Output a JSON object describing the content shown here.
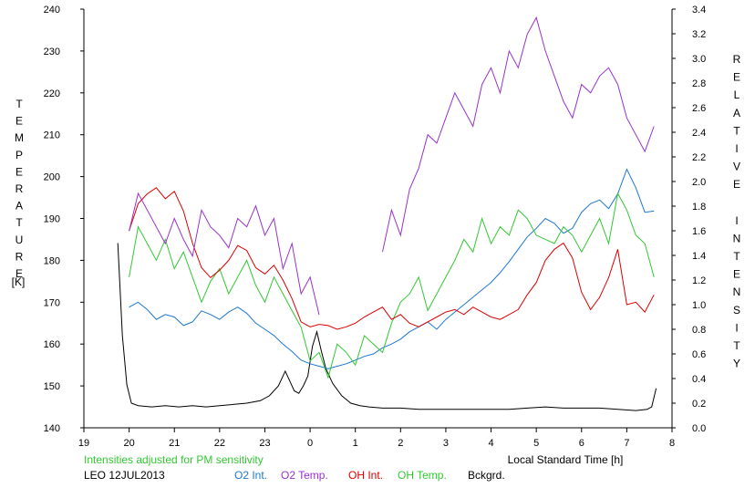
{
  "chart_data": {
    "type": "line",
    "left_axis": {
      "label": "TEMPERATURE",
      "unit": "[K]",
      "ylim": [
        140,
        240
      ],
      "ticks": [
        "140",
        "150",
        "160",
        "170",
        "180",
        "190",
        "200",
        "210",
        "220",
        "230",
        "240"
      ]
    },
    "right_axis": {
      "label": "RELATIVE INTENSITY",
      "ylim": [
        0.0,
        3.4
      ],
      "ticks": [
        "0.0",
        "0.2",
        "0.4",
        "0.6",
        "0.8",
        "1.0",
        "1.2",
        "1.4",
        "1.6",
        "1.8",
        "2.0",
        "2.2",
        "2.4",
        "2.6",
        "2.8",
        "3.0",
        "3.2",
        "3.4"
      ]
    },
    "x_axis": {
      "label": "Local Standard Time [h]",
      "xlim": [
        19,
        32
      ],
      "ticks": [
        "19",
        "20",
        "21",
        "22",
        "23",
        "0",
        "1",
        "2",
        "3",
        "4",
        "5",
        "6",
        "7",
        "8"
      ]
    },
    "note": "Intensities adjusted for PM sensitivity",
    "station": "LEO 12JUL2013",
    "grid": false,
    "series": [
      {
        "name": "O2 Int.",
        "axis": "right",
        "color": "#1e78d2",
        "x": [
          20.0,
          20.2,
          20.4,
          20.6,
          20.8,
          21.0,
          21.2,
          21.4,
          21.6,
          21.8,
          22.0,
          22.2,
          22.4,
          22.6,
          22.8,
          23.0,
          23.2,
          23.4,
          23.6,
          23.8,
          24.0,
          24.2,
          24.4,
          24.6,
          24.8,
          25.0,
          25.2,
          25.4,
          25.6,
          25.8,
          26.0,
          26.2,
          26.4,
          26.6,
          26.8,
          27.0,
          27.2,
          27.4,
          27.6,
          27.8,
          28.0,
          28.2,
          28.4,
          28.6,
          28.8,
          29.0,
          29.2,
          29.4,
          29.6,
          29.8,
          30.0,
          30.2,
          30.4,
          30.6,
          30.8,
          31.0,
          31.2,
          31.4,
          31.6
        ],
        "values": [
          0.98,
          1.02,
          0.96,
          0.88,
          0.92,
          0.9,
          0.83,
          0.86,
          0.95,
          0.92,
          0.88,
          0.94,
          0.98,
          0.93,
          0.85,
          0.8,
          0.75,
          0.68,
          0.62,
          0.55,
          0.52,
          0.5,
          0.48,
          0.5,
          0.52,
          0.55,
          0.58,
          0.6,
          0.65,
          0.68,
          0.72,
          0.78,
          0.82,
          0.86,
          0.8,
          0.88,
          0.94,
          1.0,
          1.06,
          1.12,
          1.18,
          1.26,
          1.35,
          1.45,
          1.55,
          1.62,
          1.7,
          1.66,
          1.58,
          1.62,
          1.75,
          1.82,
          1.85,
          1.78,
          1.9,
          2.1,
          1.95,
          1.75,
          1.76
        ]
      },
      {
        "name": "O2 Temp.",
        "axis": "left",
        "color": "#9932cc",
        "x": [
          20.0,
          20.2,
          20.4,
          20.6,
          20.8,
          21.0,
          21.2,
          21.4,
          21.6,
          21.8,
          22.0,
          22.2,
          22.4,
          22.6,
          22.8,
          23.0,
          23.2,
          23.4,
          23.6,
          23.8,
          24.0,
          24.2,
          25.6,
          25.8,
          26.0,
          26.2,
          26.4,
          26.6,
          26.8,
          27.0,
          27.2,
          27.4,
          27.6,
          27.8,
          28.0,
          28.2,
          28.4,
          28.6,
          28.8,
          29.0,
          29.2,
          29.4,
          29.6,
          29.8,
          30.0,
          30.2,
          30.4,
          30.6,
          30.8,
          31.0,
          31.2,
          31.4,
          31.6
        ],
        "values": [
          187,
          196,
          192,
          188,
          184,
          190,
          185,
          181,
          192,
          188,
          186,
          183,
          190,
          188,
          193,
          186,
          190,
          178,
          184,
          172,
          176,
          167,
          182,
          192,
          186,
          197,
          202,
          210,
          208,
          214,
          220,
          216,
          212,
          222,
          226,
          220,
          230,
          226,
          234,
          238,
          230,
          224,
          218,
          214,
          222,
          220,
          224,
          226,
          222,
          214,
          210,
          206,
          212
        ]
      },
      {
        "name": "OH Int.",
        "axis": "right",
        "color": "#dc0000",
        "x": [
          20.0,
          20.2,
          20.4,
          20.6,
          20.8,
          21.0,
          21.2,
          21.4,
          21.6,
          21.8,
          22.0,
          22.2,
          22.4,
          22.6,
          22.8,
          23.0,
          23.2,
          23.4,
          23.6,
          23.8,
          24.0,
          24.2,
          24.4,
          24.6,
          24.8,
          25.0,
          25.2,
          25.4,
          25.6,
          25.8,
          26.0,
          26.2,
          26.4,
          26.6,
          26.8,
          27.0,
          27.2,
          27.4,
          27.6,
          27.8,
          28.0,
          28.2,
          28.4,
          28.6,
          28.8,
          29.0,
          29.2,
          29.4,
          29.6,
          29.8,
          30.0,
          30.2,
          30.4,
          30.6,
          30.8,
          31.0,
          31.2,
          31.4,
          31.6
        ],
        "values": [
          1.6,
          1.82,
          1.9,
          1.95,
          1.86,
          1.92,
          1.76,
          1.5,
          1.3,
          1.22,
          1.28,
          1.36,
          1.48,
          1.44,
          1.3,
          1.25,
          1.32,
          1.2,
          1.05,
          0.86,
          0.82,
          0.84,
          0.83,
          0.8,
          0.82,
          0.85,
          0.9,
          0.94,
          0.98,
          0.88,
          0.92,
          0.85,
          0.82,
          0.86,
          0.9,
          0.94,
          0.96,
          0.92,
          0.98,
          0.94,
          0.9,
          0.88,
          0.92,
          0.96,
          1.08,
          1.18,
          1.36,
          1.45,
          1.5,
          1.38,
          1.1,
          0.96,
          1.06,
          1.22,
          1.45,
          1.0,
          1.02,
          0.94,
          1.08
        ]
      },
      {
        "name": "OH Temp.",
        "axis": "left",
        "color": "#32c832",
        "x": [
          20.0,
          20.2,
          20.4,
          20.6,
          20.8,
          21.0,
          21.2,
          21.4,
          21.6,
          21.8,
          22.0,
          22.2,
          22.4,
          22.6,
          22.8,
          23.0,
          23.2,
          23.4,
          23.6,
          23.8,
          24.0,
          24.2,
          24.4,
          24.6,
          24.8,
          25.0,
          25.2,
          25.4,
          25.6,
          25.8,
          26.0,
          26.2,
          26.4,
          26.6,
          26.8,
          27.0,
          27.2,
          27.4,
          27.6,
          27.8,
          28.0,
          28.2,
          28.4,
          28.6,
          28.8,
          29.0,
          29.2,
          29.4,
          29.6,
          29.8,
          30.0,
          30.2,
          30.4,
          30.6,
          30.8,
          31.0,
          31.2,
          31.4,
          31.6
        ],
        "values": [
          176,
          188,
          184,
          180,
          185,
          178,
          182,
          176,
          170,
          175,
          178,
          172,
          176,
          180,
          174,
          170,
          176,
          172,
          168,
          164,
          156,
          158,
          152,
          160,
          158,
          155,
          162,
          160,
          158,
          165,
          170,
          172,
          176,
          168,
          172,
          176,
          180,
          185,
          182,
          190,
          184,
          188,
          186,
          192,
          190,
          186,
          185,
          184,
          188,
          186,
          182,
          186,
          190,
          184,
          196,
          192,
          186,
          184,
          176
        ]
      },
      {
        "name": "Bckgrd.",
        "axis": "right",
        "color": "#000000",
        "x": [
          19.75,
          19.85,
          19.95,
          20.05,
          20.2,
          20.5,
          20.8,
          21.1,
          21.4,
          21.7,
          22.0,
          22.3,
          22.6,
          22.9,
          23.1,
          23.3,
          23.45,
          23.55,
          23.65,
          23.75,
          23.85,
          23.95,
          24.05,
          24.15,
          24.25,
          24.35,
          24.5,
          24.7,
          24.9,
          25.1,
          25.3,
          25.6,
          26.0,
          26.4,
          26.8,
          27.2,
          27.6,
          28.0,
          28.4,
          28.8,
          29.2,
          29.6,
          30.0,
          30.4,
          30.8,
          31.2,
          31.45,
          31.55,
          31.65
        ],
        "values": [
          1.5,
          0.75,
          0.35,
          0.2,
          0.18,
          0.17,
          0.18,
          0.17,
          0.18,
          0.17,
          0.18,
          0.19,
          0.2,
          0.22,
          0.26,
          0.34,
          0.46,
          0.38,
          0.3,
          0.28,
          0.34,
          0.42,
          0.66,
          0.78,
          0.62,
          0.48,
          0.36,
          0.26,
          0.2,
          0.18,
          0.17,
          0.16,
          0.16,
          0.15,
          0.15,
          0.15,
          0.15,
          0.15,
          0.15,
          0.16,
          0.17,
          0.16,
          0.16,
          0.16,
          0.15,
          0.14,
          0.15,
          0.17,
          0.32
        ]
      }
    ]
  }
}
